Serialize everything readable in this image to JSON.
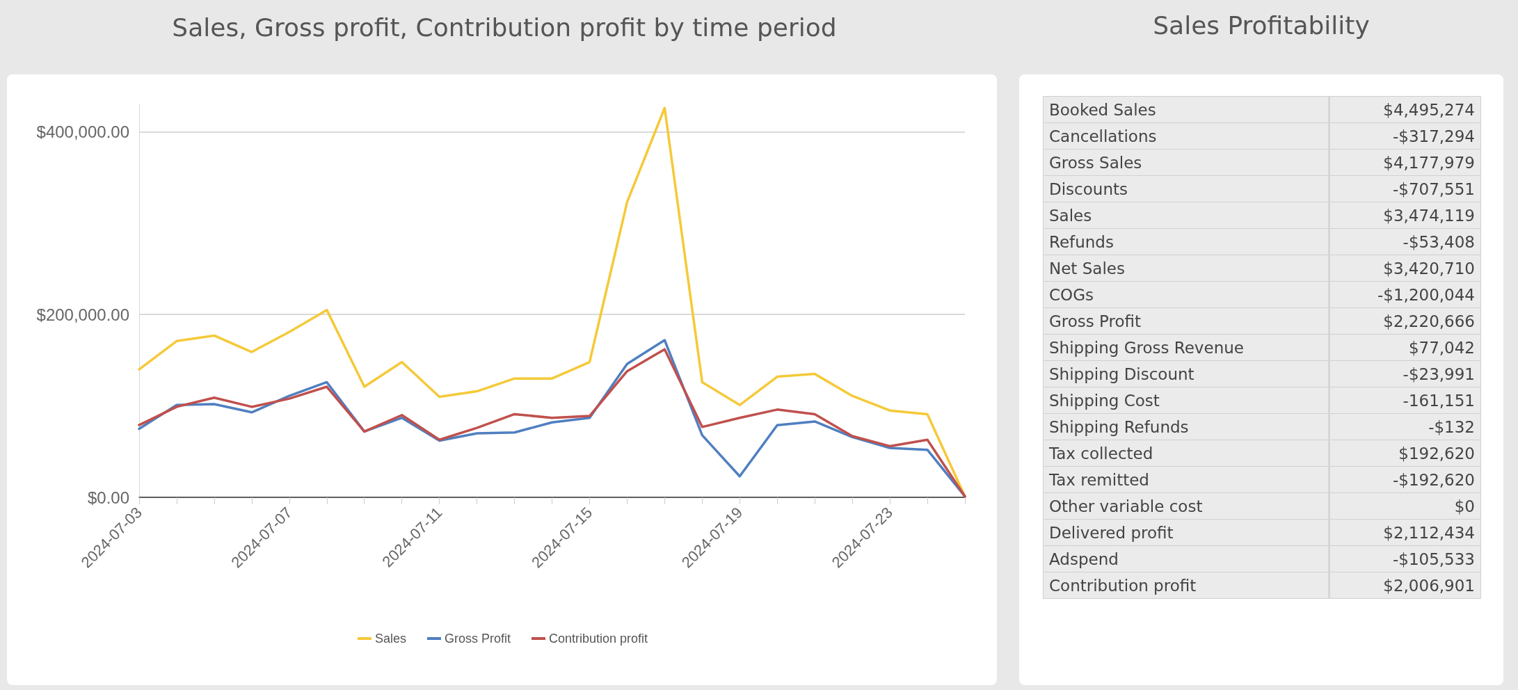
{
  "chart_data": [
    {
      "type": "line",
      "title": "Sales, Gross profit, Contribution profit by time period",
      "categories": [
        "2024-07-03",
        null,
        null,
        null,
        "2024-07-07",
        null,
        null,
        null,
        "2024-07-11",
        null,
        null,
        null,
        "2024-07-15",
        null,
        null,
        null,
        "2024-07-19",
        null,
        null,
        null,
        "2024-07-23",
        null,
        null
      ],
      "series": [
        {
          "name": "Sales",
          "color": "#f5c938",
          "values": [
            140000,
            171000,
            177000,
            159000,
            181000,
            205000,
            121000,
            148000,
            110000,
            116000,
            130000,
            130000,
            148000,
            323000,
            426000,
            126000,
            101000,
            132000,
            135000,
            111000,
            95000,
            91000,
            1000
          ]
        },
        {
          "name": "Gross Profit",
          "color": "#4f7fc0",
          "values": [
            75000,
            101000,
            102000,
            93000,
            111000,
            126000,
            72000,
            87000,
            62000,
            70000,
            71000,
            82000,
            87000,
            146000,
            172000,
            68000,
            23000,
            79000,
            83000,
            66000,
            54000,
            52000,
            1000
          ]
        },
        {
          "name": "Contribution profit",
          "color": "#c0504d",
          "values": [
            79000,
            99000,
            109000,
            99000,
            108000,
            121000,
            72000,
            90000,
            63000,
            76000,
            91000,
            87000,
            89000,
            138000,
            162000,
            77000,
            87000,
            96000,
            91000,
            67000,
            56000,
            63000,
            1000
          ]
        }
      ],
      "yticks": [
        {
          "value": 0,
          "label": "$0.00"
        },
        {
          "value": 200000,
          "label": "$200,000.00"
        },
        {
          "value": 400000,
          "label": "$400,000.00"
        }
      ],
      "ylim": [
        0,
        430000
      ],
      "grid": "y",
      "legend": "bottom",
      "marker": "none",
      "line_style": "solid"
    },
    {
      "type": "other",
      "title": "Sales Profitability",
      "categories": [
        "Booked Sales",
        "Cancellations",
        "Gross Sales",
        "Discounts",
        "Sales",
        "Refunds",
        "Net Sales",
        "COGs",
        "Gross Profit",
        "Shipping Gross Revenue",
        "Shipping Discount",
        "Shipping Cost",
        "Shipping Refunds",
        "Tax collected",
        "Tax remitted",
        "Other variable cost",
        "Delivered profit",
        "Adspend",
        "Contribution profit"
      ],
      "value_labels": [
        "$4,495,274",
        "-$317,294",
        "$4,177,979",
        "-$707,551",
        "$3,474,119",
        "-$53,408",
        "$3,420,710",
        "-$1,200,044",
        "$2,220,666",
        "$77,042",
        "-$23,991",
        "-161,151",
        "-$132",
        "$192,620",
        "-$192,620",
        "$0",
        "$2,112,434",
        "-$105,533",
        "$2,006,901"
      ]
    }
  ]
}
